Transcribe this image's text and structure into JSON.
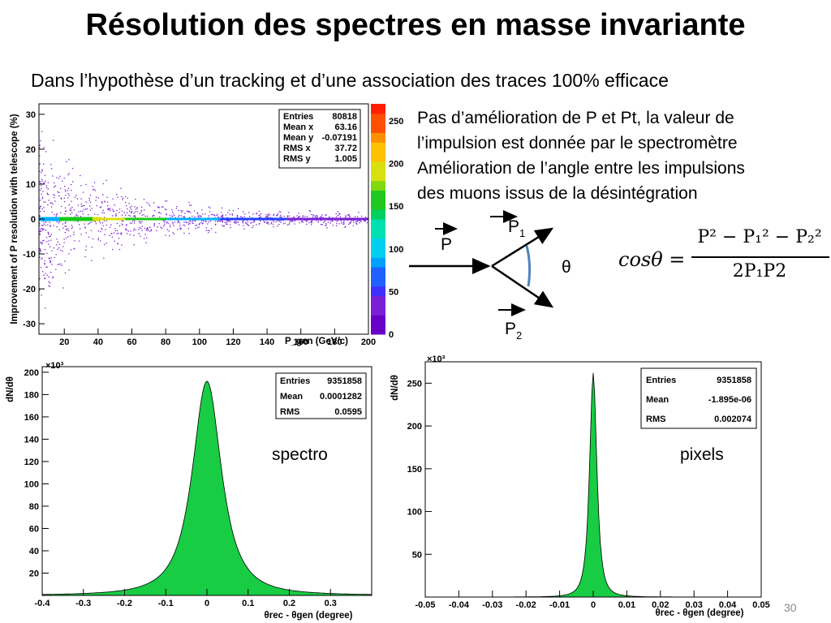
{
  "slide": {
    "title": "Résolution des spectres en masse invariante",
    "subtitle": "Dans l’hypothèse d’un tracking et d’une association des traces 100% efficace",
    "bullets": [
      "Pas d’amélioration de P et Pt, la valeur de",
      "l’impulsion est donnée par le spectromètre",
      "Amélioration de l’angle entre les impulsions",
      "des muons issus de la désintégration"
    ],
    "page_number": "30"
  },
  "diagram": {
    "p_label": "P",
    "p1_base": "P",
    "p1_sub": "1",
    "p2_base": "P",
    "p2_sub": "2",
    "theta": "θ"
  },
  "formula": {
    "lhs": "cosθ =",
    "numerator": "P² − P₁² − P₂²",
    "denominator": "2P₁P2"
  },
  "chart_data": [
    {
      "type": "scatter",
      "title": "",
      "ylabel": "Improvement of P resolution with telescope (%)",
      "xlabel": "P_gen (GeV/c)",
      "xlim": [
        5,
        200
      ],
      "ylim": [
        -33,
        33
      ],
      "x_ticks": [
        "20",
        "40",
        "60",
        "80",
        "100",
        "120",
        "140",
        "160",
        "180",
        "200"
      ],
      "y_ticks": [
        "30",
        "20",
        "10",
        "0",
        "-10",
        "-20",
        "-30"
      ],
      "colorbar_ticks": [
        "250",
        "200",
        "150",
        "100",
        "50",
        "0"
      ],
      "stats": [
        {
          "label": "Entries",
          "value": "80818"
        },
        {
          "label": "Mean x",
          "value": "63.16"
        },
        {
          "label": "Mean y",
          "value": "-0.07191"
        },
        {
          "label": "RMS x",
          "value": "37.72"
        },
        {
          "label": "RMS y",
          "value": "1.005"
        }
      ],
      "band_y": 0,
      "colors": [
        "#4b0082",
        "#7a1fd6",
        "#2040ff",
        "#00b0ff",
        "#00e0a0",
        "#18c818",
        "#d8e010",
        "#ff9000",
        "#ff2000"
      ]
    },
    {
      "type": "area",
      "title": "",
      "annotation": "spectro",
      "multiplier": "×10³",
      "ylabel": "dN/dθ",
      "xlabel": "θrec - θgen (degree)",
      "xlim": [
        -0.4,
        0.4
      ],
      "ylim": [
        0,
        205
      ],
      "x_ticks": [
        "-0.4",
        "-0.3",
        "-0.2",
        "-0.1",
        "0",
        "0.1",
        "0.2",
        "0.3"
      ],
      "y_ticks": [
        "200",
        "180",
        "160",
        "140",
        "120",
        "100",
        "80",
        "60",
        "40",
        "20"
      ],
      "stats": [
        {
          "label": "Entries",
          "value": "9351858"
        },
        {
          "label": "Mean",
          "value": "0.0001282"
        },
        {
          "label": "RMS",
          "value": "0.0595"
        }
      ],
      "peak_x": 0,
      "peak_value": 192,
      "fill_color": "#18cc44"
    },
    {
      "type": "area",
      "title": "",
      "annotation": "pixels",
      "multiplier": "×10³",
      "ylabel": "dN/dθ",
      "xlabel": "θrec - θgen (degree)",
      "xlim": [
        -0.05,
        0.05
      ],
      "ylim": [
        0,
        275
      ],
      "x_ticks": [
        "-0.05",
        "-0.04",
        "-0.03",
        "-0.02",
        "-0.01",
        "0",
        "0.01",
        "0.02",
        "0.03",
        "0.04",
        "0.05"
      ],
      "y_ticks": [
        "250",
        "200",
        "150",
        "100",
        "50"
      ],
      "stats": [
        {
          "label": "Entries",
          "value": "9351858"
        },
        {
          "label": "Mean",
          "value": "-1.895e-06"
        },
        {
          "label": "RMS",
          "value": "0.002074"
        }
      ],
      "peak_x": 0,
      "peak_value": 262,
      "fill_color": "#18cc44"
    }
  ]
}
